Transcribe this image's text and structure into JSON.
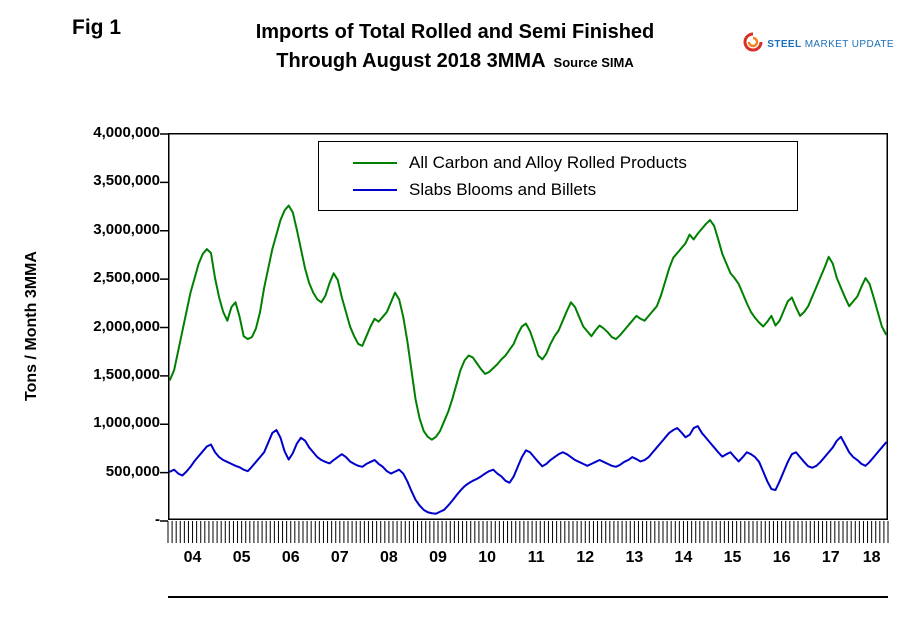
{
  "fig_label": "Fig 1",
  "title": {
    "line1": "Imports of Total Rolled and Semi Finished",
    "line2": "Through August 2018 3MMA",
    "source": "Source SIMA"
  },
  "logo": {
    "word1": "STEEL",
    "word2": "MARKET",
    "word3": "UPDATE"
  },
  "y_axis_title": "Tons / Month 3MMA",
  "chart_data": {
    "type": "line",
    "title": "Imports of Total Rolled and Semi Finished Through August 2018 3MMA",
    "source": "Source SIMA",
    "xlabel": "",
    "ylabel": "Tons / Month 3MMA",
    "ylim": [
      0,
      4000000
    ],
    "ytick_interval": 500000,
    "grid": false,
    "legend_position": "top-center-inside",
    "ytick_labels": [
      "4,000,000",
      "3,500,000",
      "3,000,000",
      "2,500,000",
      "2,000,000",
      "1,500,000",
      "1,000,000",
      "500,000",
      "-"
    ],
    "x_years": [
      "04",
      "05",
      "06",
      "07",
      "08",
      "09",
      "10",
      "11",
      "12",
      "13",
      "14",
      "15",
      "16",
      "17",
      "18"
    ],
    "months_per_year": [
      12,
      12,
      12,
      12,
      12,
      12,
      12,
      12,
      12,
      12,
      12,
      12,
      12,
      12,
      8
    ],
    "series": [
      {
        "name": "All Carbon and Alloy Rolled Products",
        "color": "#008000",
        "values": [
          1450000,
          1550000,
          1750000,
          1950000,
          2150000,
          2350000,
          2500000,
          2650000,
          2750000,
          2800000,
          2760000,
          2500000,
          2300000,
          2150000,
          2060000,
          2200000,
          2250000,
          2100000,
          1900000,
          1870000,
          1890000,
          1980000,
          2150000,
          2400000,
          2600000,
          2800000,
          2950000,
          3100000,
          3200000,
          3250000,
          3180000,
          3000000,
          2800000,
          2600000,
          2450000,
          2350000,
          2280000,
          2250000,
          2320000,
          2450000,
          2550000,
          2480000,
          2300000,
          2150000,
          2000000,
          1900000,
          1820000,
          1800000,
          1900000,
          2000000,
          2080000,
          2050000,
          2100000,
          2150000,
          2250000,
          2350000,
          2280000,
          2100000,
          1850000,
          1550000,
          1250000,
          1050000,
          920000,
          860000,
          830000,
          860000,
          920000,
          1020000,
          1120000,
          1250000,
          1400000,
          1550000,
          1650000,
          1700000,
          1680000,
          1620000,
          1560000,
          1510000,
          1530000,
          1570000,
          1610000,
          1660000,
          1700000,
          1760000,
          1820000,
          1920000,
          2000000,
          2030000,
          1950000,
          1830000,
          1700000,
          1660000,
          1720000,
          1820000,
          1900000,
          1960000,
          2060000,
          2160000,
          2250000,
          2200000,
          2100000,
          2000000,
          1950000,
          1900000,
          1960000,
          2010000,
          1980000,
          1940000,
          1890000,
          1870000,
          1910000,
          1960000,
          2010000,
          2060000,
          2110000,
          2080000,
          2060000,
          2110000,
          2160000,
          2210000,
          2320000,
          2460000,
          2600000,
          2710000,
          2760000,
          2810000,
          2860000,
          2950000,
          2900000,
          2960000,
          3010000,
          3060000,
          3100000,
          3040000,
          2900000,
          2750000,
          2650000,
          2550000,
          2500000,
          2440000,
          2340000,
          2240000,
          2150000,
          2090000,
          2040000,
          2000000,
          2050000,
          2110000,
          2010000,
          2060000,
          2160000,
          2260000,
          2300000,
          2200000,
          2110000,
          2150000,
          2210000,
          2310000,
          2410000,
          2510000,
          2610000,
          2720000,
          2650000,
          2500000,
          2400000,
          2300000,
          2210000,
          2260000,
          2310000,
          2410000,
          2500000,
          2440000,
          2300000,
          2150000,
          2000000,
          1920000
        ]
      },
      {
        "name": "Slabs Blooms and Billets",
        "color": "#0000CC",
        "values": [
          500000,
          520000,
          480000,
          460000,
          500000,
          550000,
          610000,
          660000,
          710000,
          760000,
          780000,
          700000,
          650000,
          620000,
          600000,
          580000,
          560000,
          545000,
          520000,
          505000,
          550000,
          600000,
          650000,
          700000,
          800000,
          900000,
          930000,
          850000,
          710000,
          625000,
          690000,
          790000,
          850000,
          820000,
          750000,
          700000,
          650000,
          620000,
          600000,
          585000,
          620000,
          650000,
          680000,
          650000,
          605000,
          580000,
          560000,
          550000,
          580000,
          600000,
          620000,
          580000,
          550000,
          505000,
          480000,
          500000,
          520000,
          480000,
          400000,
          300000,
          210000,
          150000,
          105000,
          80000,
          70000,
          65000,
          85000,
          105000,
          150000,
          200000,
          255000,
          305000,
          350000,
          380000,
          405000,
          425000,
          450000,
          480000,
          505000,
          520000,
          480000,
          450000,
          405000,
          385000,
          450000,
          550000,
          650000,
          720000,
          700000,
          650000,
          600000,
          555000,
          580000,
          620000,
          650000,
          680000,
          700000,
          680000,
          650000,
          620000,
          600000,
          580000,
          560000,
          580000,
          600000,
          620000,
          600000,
          580000,
          560000,
          550000,
          570000,
          600000,
          620000,
          650000,
          630000,
          605000,
          620000,
          650000,
          700000,
          750000,
          800000,
          850000,
          900000,
          930000,
          950000,
          905000,
          855000,
          880000,
          950000,
          970000,
          900000,
          850000,
          800000,
          750000,
          700000,
          655000,
          680000,
          700000,
          650000,
          605000,
          650000,
          700000,
          680000,
          650000,
          600000,
          500000,
          400000,
          320000,
          310000,
          400000,
          500000,
          600000,
          680000,
          700000,
          650000,
          600000,
          555000,
          540000,
          560000,
          600000,
          650000,
          700000,
          750000,
          820000,
          860000,
          780000,
          700000,
          650000,
          620000,
          580000,
          560000,
          600000,
          650000,
          700000,
          750000,
          800000
        ]
      }
    ]
  }
}
